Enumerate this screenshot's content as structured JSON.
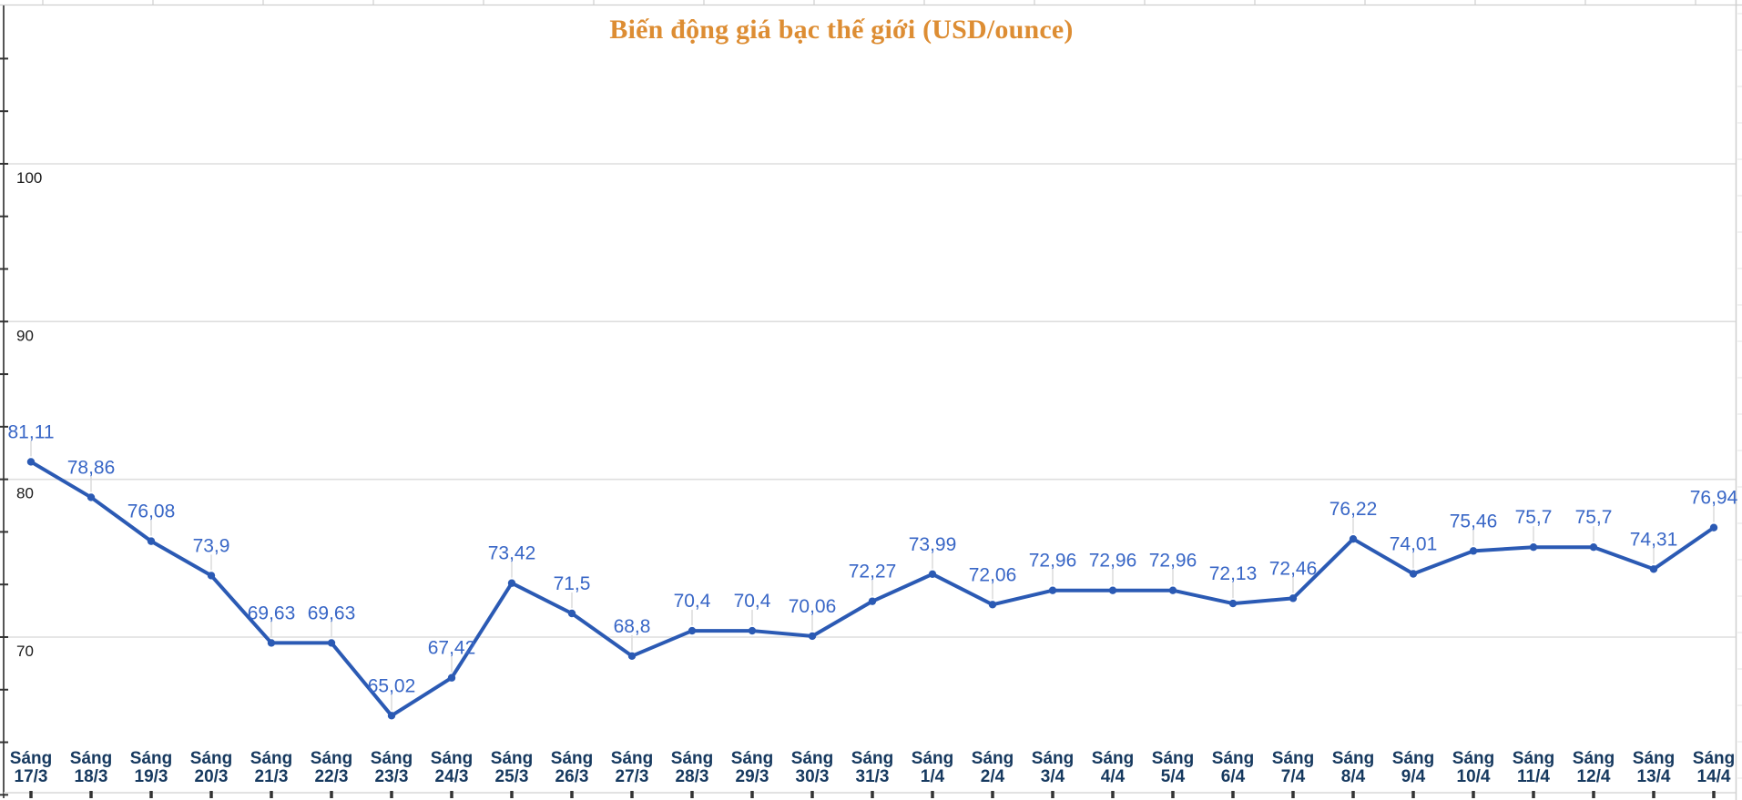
{
  "chart_data": {
    "type": "line",
    "title": "Biến động giá bạc thế giới (USD/ounce)",
    "categories": [
      "Sáng 17/3",
      "Sáng 18/3",
      "Sáng 19/3",
      "Sáng 20/3",
      "Sáng 21/3",
      "Sáng 22/3",
      "Sáng 23/3",
      "Sáng 24/3",
      "Sáng 25/3",
      "Sáng 26/3",
      "Sáng 27/3",
      "Sáng 28/3",
      "Sáng 29/3",
      "Sáng 30/3",
      "Sáng 31/3",
      "Sáng 1/4",
      "Sáng 2/4",
      "Sáng 3/4",
      "Sáng 4/4",
      "Sáng 5/4",
      "Sáng 6/4",
      "Sáng 7/4",
      "Sáng 8/4",
      "Sáng 9/4",
      "Sáng 10/4",
      "Sáng 11/4",
      "Sáng 12/4",
      "Sáng 13/4",
      "Sáng 14/4"
    ],
    "values": [
      81.11,
      78.86,
      76.08,
      73.9,
      69.63,
      69.63,
      65.02,
      67.42,
      73.42,
      71.5,
      68.8,
      70.4,
      70.4,
      70.06,
      72.27,
      73.99,
      72.06,
      72.96,
      72.96,
      72.96,
      72.13,
      72.46,
      76.22,
      74.01,
      75.46,
      75.7,
      75.7,
      74.31,
      76.94
    ],
    "value_labels": [
      "81,11",
      "78,86",
      "76,08",
      "73,9",
      "69,63",
      "69,63",
      "65,02",
      "67,42",
      "73,42",
      "71,5",
      "68,8",
      "70,4",
      "70,4",
      "70,06",
      "72,27",
      "73,99",
      "72,06",
      "72,96",
      "72,96",
      "72,96",
      "72,13",
      "72,46",
      "76,22",
      "74,01",
      "75,46",
      "75,7",
      "75,7",
      "74,31",
      "76,94"
    ],
    "xlabel": "",
    "ylabel": "",
    "yticks_labeled": [
      100,
      90,
      80,
      70
    ],
    "ylim": [
      60,
      110
    ],
    "minor_ticks_per_major": 3,
    "grid": true,
    "legend": "none",
    "data_labels_position": "above"
  },
  "colors": {
    "title": "#DD8D33",
    "line": "#2B5AB4",
    "marker": "#2B5AB4",
    "value_label": "#3866C6",
    "x_label": "#16395F",
    "y_label": "#1A1A1A",
    "gridline": "#DEDEDE",
    "axis_line": "#555555",
    "axis_tick": "#333333",
    "x_axis_line": "#D9D9D9",
    "sheet_line": "#CFCFCF",
    "leader_line": "#DADADA",
    "background": "#FFFFFF"
  }
}
